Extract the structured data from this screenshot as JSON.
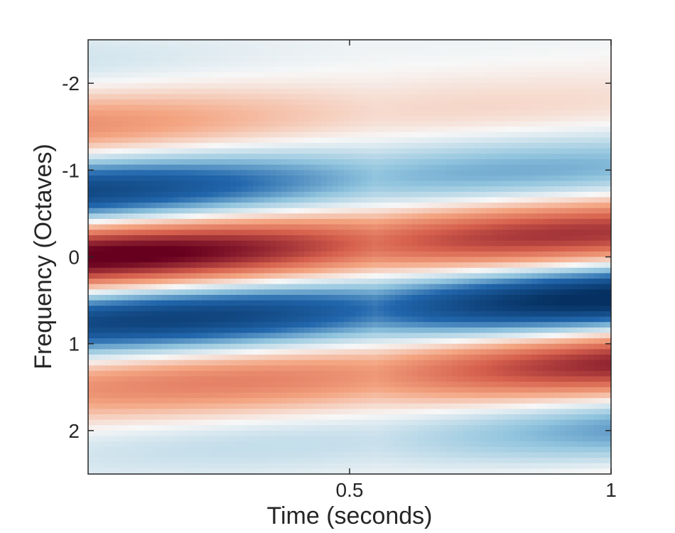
{
  "chart_data": {
    "type": "heatmap",
    "title": "",
    "xlabel": "Time (seconds)",
    "ylabel": "Frequency (Octaves)",
    "xlim": [
      0,
      1
    ],
    "ylim": [
      -2.5,
      2.5
    ],
    "y_reversed": true,
    "x_ticks": [
      0.5,
      1
    ],
    "x_tick_labels": [
      "0.5",
      "1"
    ],
    "y_ticks": [
      -2,
      -1,
      0,
      1,
      2
    ],
    "y_tick_labels": [
      "-2",
      "-1",
      "0",
      "1",
      "2"
    ],
    "grid": false,
    "colormap": {
      "negative": "#053061",
      "mid_negative": "#2166ac",
      "light_negative": "#92c5de",
      "zero": "#f7f7f7",
      "light_positive": "#f4a582",
      "mid_positive": "#d6604d",
      "positive": "#67001f"
    },
    "pattern": {
      "description": "oriented Gabor-like ripple descending in frequency over time",
      "center_frequency_start": 0.0,
      "center_frequency_slope_octaves_per_second": 0.55,
      "ripple_period_octaves": 1.6,
      "envelope_sigma_octaves": 1.1,
      "time_range": [
        0,
        1
      ],
      "frequency_range": [
        -2.5,
        2.5
      ]
    }
  }
}
